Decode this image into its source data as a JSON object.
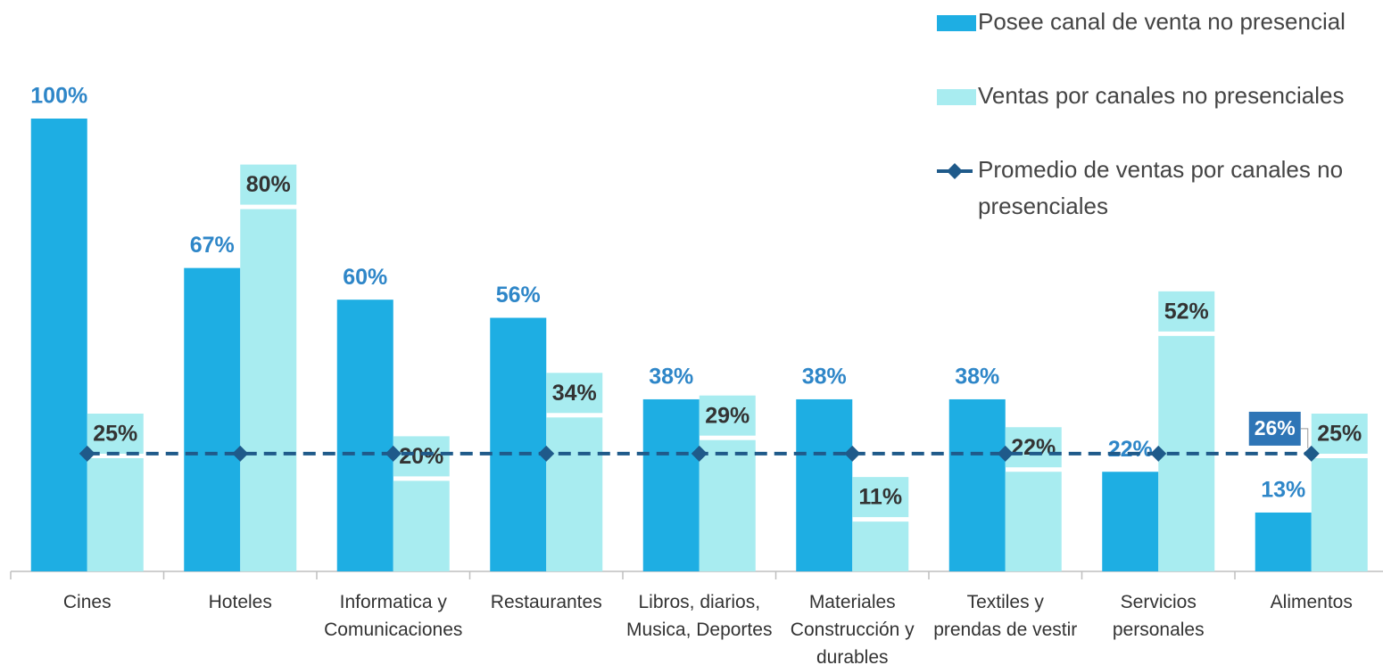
{
  "chart_data": {
    "type": "bar",
    "categories": [
      "Cines",
      "Hoteles",
      "Informatica y Comunicaciones",
      "Restaurantes",
      "Libros, diarios, Musica, Deportes",
      "Materiales Construcción y durables",
      "Textiles y prendas de vestir",
      "Servicios personales",
      "Alimentos"
    ],
    "series": [
      {
        "name": "Posee canal de venta no presencial",
        "color": "#1eaee3",
        "values": [
          100,
          67,
          60,
          56,
          38,
          38,
          38,
          22,
          13
        ],
        "value_labels": [
          "100%",
          "67%",
          "60%",
          "56%",
          "38%",
          "38%",
          "38%",
          "22%",
          "13%"
        ]
      },
      {
        "name": "Ventas por canales no presenciales",
        "color": "#a8ecf0",
        "values": [
          25,
          80,
          20,
          34,
          29,
          11,
          22,
          52,
          25
        ],
        "value_labels": [
          "25%",
          "80%",
          "20%",
          "34%",
          "29%",
          "11%",
          "22%",
          "52%",
          "25%"
        ]
      },
      {
        "name": "Promedio de ventas por canales no presenciales",
        "type": "line",
        "color": "#1f5a8a",
        "values": [
          26,
          26,
          26,
          26,
          26,
          26,
          26,
          26,
          26
        ],
        "value_labels": [
          null,
          null,
          null,
          null,
          null,
          null,
          null,
          null,
          "26%"
        ]
      }
    ],
    "ylim": [
      0,
      100
    ],
    "legend": "top-right"
  }
}
